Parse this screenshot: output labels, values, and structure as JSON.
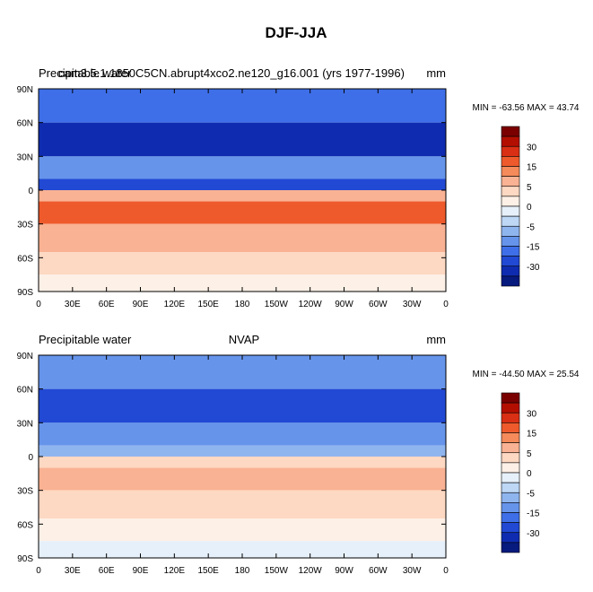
{
  "figure_title": "DJF-JJA",
  "chart_data": [
    {
      "type": "heatmap",
      "title_left": "Precipitable water",
      "title_center": "cam3.5.1.1850C5CN.abrupt4xco2.ne120_g16.001 (yrs 1977-1996)",
      "units": "mm",
      "stats_text": "MIN = -63.56 MAX =  43.74",
      "min": -63.56,
      "max": 43.74,
      "x_ticks": [
        "0",
        "30E",
        "60E",
        "90E",
        "120E",
        "150E",
        "180",
        "150W",
        "120W",
        "90W",
        "60W",
        "30W",
        "0"
      ],
      "y_ticks": [
        "90N",
        "60N",
        "30N",
        "0",
        "30S",
        "60S",
        "90S"
      ],
      "colorbar_labels": [
        "30",
        "15",
        "5",
        "0",
        "-5",
        "-15",
        "-30"
      ],
      "colorbar_colors": [
        "#7a0000",
        "#b30f00",
        "#d92f14",
        "#ee5a2c",
        "#f58a5a",
        "#f9b293",
        "#fdd8c2",
        "#fdf0e6",
        "#e6f0fa",
        "#bdd7f5",
        "#8fb5ef",
        "#6694eb",
        "#3e6fe8",
        "#2149d4",
        "#0f2cb0",
        "#071a7d"
      ],
      "bands": [
        {
          "lat": [
            90,
            60
          ],
          "value": -15
        },
        {
          "lat": [
            60,
            30
          ],
          "value": -25
        },
        {
          "lat": [
            30,
            10
          ],
          "value": -10
        },
        {
          "lat": [
            10,
            0
          ],
          "value": -20
        },
        {
          "lat": [
            0,
            -10
          ],
          "value": 10
        },
        {
          "lat": [
            -10,
            -30
          ],
          "value": 20
        },
        {
          "lat": [
            -30,
            -55
          ],
          "value": 10
        },
        {
          "lat": [
            -55,
            -75
          ],
          "value": 5
        },
        {
          "lat": [
            -75,
            -90
          ],
          "value": 2
        }
      ]
    },
    {
      "type": "heatmap",
      "title_left": "Precipitable water",
      "title_center": "NVAP",
      "units": "mm",
      "stats_text": "MIN = -44.50 MAX =  25.54",
      "min": -44.5,
      "max": 25.54,
      "x_ticks": [
        "0",
        "30E",
        "60E",
        "90E",
        "120E",
        "150E",
        "180",
        "150W",
        "120W",
        "90W",
        "60W",
        "30W",
        "0"
      ],
      "y_ticks": [
        "90N",
        "60N",
        "30N",
        "0",
        "30S",
        "60S",
        "90S"
      ],
      "colorbar_labels": [
        "30",
        "15",
        "5",
        "0",
        "-5",
        "-15",
        "-30"
      ],
      "colorbar_colors": [
        "#7a0000",
        "#b30f00",
        "#d92f14",
        "#ee5a2c",
        "#f58a5a",
        "#f9b293",
        "#fdd8c2",
        "#fdf0e6",
        "#e6f0fa",
        "#bdd7f5",
        "#8fb5ef",
        "#6694eb",
        "#3e6fe8",
        "#2149d4",
        "#0f2cb0",
        "#071a7d"
      ],
      "bands": [
        {
          "lat": [
            90,
            60
          ],
          "value": -10
        },
        {
          "lat": [
            60,
            30
          ],
          "value": -20
        },
        {
          "lat": [
            30,
            10
          ],
          "value": -10
        },
        {
          "lat": [
            10,
            0
          ],
          "value": -5
        },
        {
          "lat": [
            0,
            -10
          ],
          "value": 5
        },
        {
          "lat": [
            -10,
            -30
          ],
          "value": 12
        },
        {
          "lat": [
            -30,
            -55
          ],
          "value": 7
        },
        {
          "lat": [
            -55,
            -75
          ],
          "value": 4
        },
        {
          "lat": [
            -75,
            -90
          ],
          "value": 1
        }
      ]
    }
  ]
}
